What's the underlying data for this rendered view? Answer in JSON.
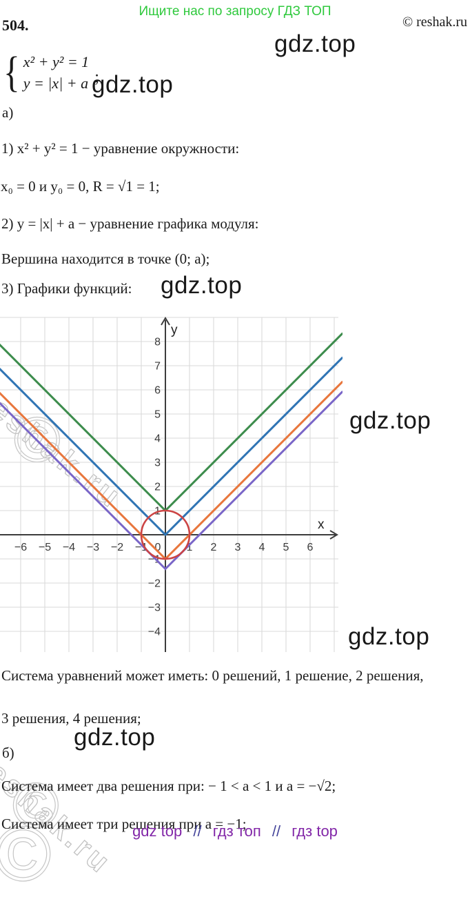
{
  "page": {
    "header_notice": "Ищите нас по запросу ГДЗ ТОП",
    "header_color": "#2fc93d",
    "problem_number": "504.",
    "copyright": "© reshak.ru"
  },
  "system": {
    "brace": "{",
    "eq1": "x² + y² = 1",
    "eq2": "y = |x| + a",
    "semicolon": ";"
  },
  "section_a": {
    "label": "а)",
    "line1": "1) x² + y² = 1  − уравнение окружности:",
    "line2": "x₀ = 0  и  y₀ = 0,   R = √1 = 1;",
    "line3": "2) y = |x| + a  − уравнение графика модуля:",
    "line4": "Вершина находится в точке (0;  a);",
    "line5": "3) Графики функций:"
  },
  "conclusion": {
    "line1": "Система уравнений может иметь:  0 решений, 1 решение, 2 решения,",
    "line2": "3 решения, 4 решения;"
  },
  "section_b": {
    "label": "б)",
    "line1": "Система имеет два решения при:  − 1 < a < 1  и  a = −√2;",
    "line2": "Система имеет три решения при a = −1;"
  },
  "footer": {
    "links": [
      "gdz top",
      "гдз топ",
      "гдз top"
    ],
    "separator": "//",
    "link_color": "#8227a8",
    "separator_color": "#45459b"
  },
  "watermarks": {
    "gdz_label": "gdz.top",
    "reshak_label": "reshak.ru",
    "copyright_glyph": "©"
  },
  "chart_data": {
    "type": "line",
    "title": "",
    "xlabel": "x",
    "ylabel": "y",
    "xlim": [
      -6.9,
      7.35
    ],
    "ylim": [
      -4.9,
      9.05
    ],
    "x_ticks": [
      -6,
      -5,
      -4,
      -3,
      -2,
      -1,
      0,
      1,
      2,
      3,
      4,
      5,
      6
    ],
    "y_ticks": [
      -4,
      -3,
      -2,
      -1,
      1,
      2,
      3,
      4,
      5,
      6,
      7,
      8
    ],
    "grid": true,
    "grid_color": "#dadada",
    "axis_color": "#3c3c3c",
    "tick_label_color": "#3a3a3a",
    "series": [
      {
        "name": "y = |x| + 1",
        "type": "abs",
        "vertex_y": 1,
        "color": "#3c8c4c"
      },
      {
        "name": "y = |x|",
        "type": "abs",
        "vertex_y": 0,
        "color": "#2f74b4"
      },
      {
        "name": "y = |x| − 1",
        "type": "abs",
        "vertex_y": -1,
        "color": "#e8763c"
      },
      {
        "name": "y = |x| − √2",
        "type": "abs",
        "vertex_y": -1.414,
        "color": "#7a66c8"
      },
      {
        "name": "x² + y² = 1",
        "type": "circle",
        "cx": 0,
        "cy": 0,
        "r": 1,
        "color": "#cc4444"
      }
    ]
  }
}
